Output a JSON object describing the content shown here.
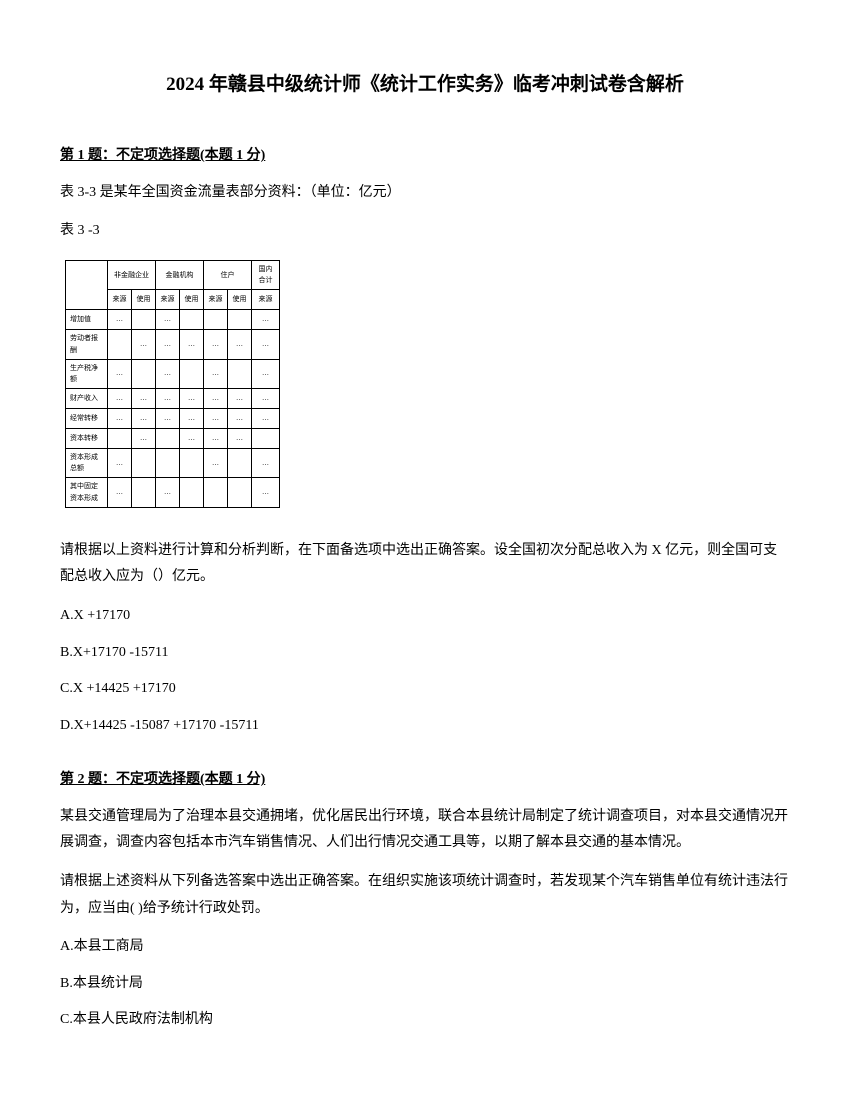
{
  "title": "2024 年赣县中级统计师《统计工作实务》临考冲刺试卷含解析",
  "question1": {
    "header": "第 1 题：不定项选择题(本题 1 分)",
    "intro1": "表 3-3 是某年全国资金流量表部分资料：（单位：亿元）",
    "intro2": "表 3 -3",
    "table": {
      "h1": "非金融企业",
      "h2": "金融机构",
      "h3": "住户",
      "h4": "国内合计",
      "sh1": "来源",
      "sh2": "使用",
      "sh3": "来源",
      "sh4": "使用",
      "sh5": "来源",
      "r1_label": "增加值",
      "r1_1": "…",
      "r1_2": "",
      "r1_3": "…",
      "r1_4": "",
      "r1_5": "…",
      "r2_label": "劳动者报酬",
      "r2_1": "",
      "r2_2": "…",
      "r2_3": "…",
      "r2_4": "…",
      "r2_5": "…",
      "r3_label": "生产税净额",
      "r3_1": "…",
      "r3_2": "",
      "r3_3": "…",
      "r3_4": "…",
      "r3_5": "…",
      "r4_label": "财产收入",
      "r4_1": "…",
      "r4_2": "…",
      "r4_3": "…",
      "r4_4": "…",
      "r4_5": "…",
      "r5_label": "经常转移",
      "r5_1": "…",
      "r5_2": "…",
      "r5_3": "…",
      "r5_4": "…",
      "r5_5": "…",
      "r6_label": "资本转移",
      "r6_1": "",
      "r6_2": "…",
      "r6_3": "",
      "r6_4": "…",
      "r6_5": "",
      "r7_label": "资本形成总额",
      "r7_1": "…",
      "r7_2": "",
      "r7_3": "",
      "r7_4": "…",
      "r7_5": "…",
      "r8_label": "其中固定资本形成",
      "r8_1": "…",
      "r8_2": "",
      "r8_3": "…",
      "r8_4": "",
      "r8_5": "…"
    },
    "prompt": "请根据以上资料进行计算和分析判断，在下面备选项中选出正确答案。设全国初次分配总收入为 X 亿元，则全国可支配总收入应为（）亿元。",
    "optionA": "A.X +17170",
    "optionB": "B.X+17170 -15711",
    "optionC": "C.X +14425 +17170",
    "optionD": "D.X+14425 -15087 +17170 -15711"
  },
  "question2": {
    "header": "第 2 题：不定项选择题(本题 1 分)",
    "body1": "某县交通管理局为了治理本县交通拥堵，优化居民出行环境，联合本县统计局制定了统计调查项目，对本县交通情况开展调查，调查内容包括本市汽车销售情况、人们出行情况交通工具等，以期了解本县交通的基本情况。",
    "body2": "请根据上述资料从下列备选答案中选出正确答案。在组织实施该项统计调查时，若发现某个汽车销售单位有统计违法行为，应当由( )给予统计行政处罚。",
    "optionA": "A.本县工商局",
    "optionB": "B.本县统计局",
    "optionC": "C.本县人民政府法制机构"
  }
}
